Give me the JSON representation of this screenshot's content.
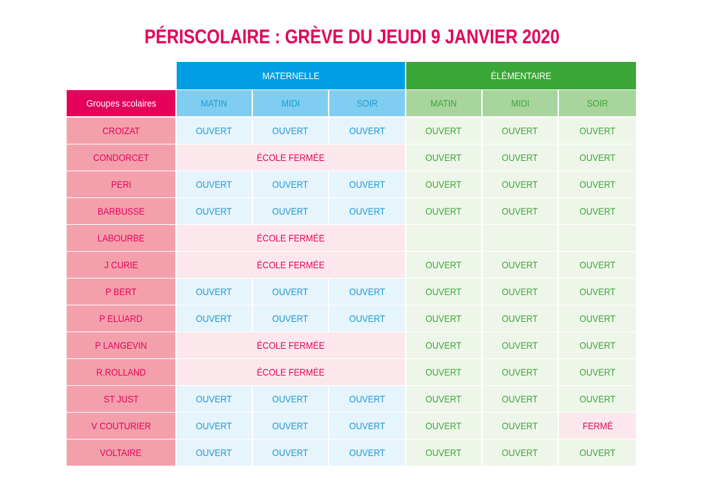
{
  "title": "PÉRISCOLAIRE : GRÈVE DU JEUDI 9 JANVIER 2020",
  "groups": {
    "maternelle": "MATERNELLE",
    "elementaire": "ÉLÉMENTAIRE"
  },
  "row_header": "Groupes scolaires",
  "periods": [
    "MATIN",
    "MIDI",
    "SOIR"
  ],
  "colors": {
    "title": "#e5005a",
    "maternelle": "#009ee3",
    "elementaire": "#3aa635",
    "school_label": "#f4a0ab"
  },
  "rows": [
    {
      "school": "CROIZAT",
      "maternelle_closed": false,
      "maternelle": [
        "OUVERT",
        "OUVERT",
        "OUVERT"
      ],
      "elementaire": [
        "OUVERT",
        "OUVERT",
        "OUVERT"
      ]
    },
    {
      "school": "CONDORCET",
      "maternelle_closed": true,
      "maternelle_closed_label": "ÉCOLE FERMÉE",
      "elementaire": [
        "OUVERT",
        "OUVERT",
        "OUVERT"
      ]
    },
    {
      "school": "PERI",
      "maternelle_closed": false,
      "maternelle": [
        "OUVERT",
        "OUVERT",
        "OUVERT"
      ],
      "elementaire": [
        "OUVERT",
        "OUVERT",
        "OUVERT"
      ]
    },
    {
      "school": "BARBUSSE",
      "maternelle_closed": false,
      "maternelle": [
        "OUVERT",
        "OUVERT",
        "OUVERT"
      ],
      "elementaire": [
        "OUVERT",
        "OUVERT",
        "OUVERT"
      ]
    },
    {
      "school": "LABOURBE",
      "maternelle_closed": true,
      "maternelle_closed_label": "ÉCOLE FERMÉE",
      "elementaire": [
        "",
        "",
        ""
      ]
    },
    {
      "school": "J CURIE",
      "maternelle_closed": true,
      "maternelle_closed_label": "ÉCOLE FERMÉE",
      "elementaire": [
        "OUVERT",
        "OUVERT",
        "OUVERT"
      ]
    },
    {
      "school": "P BERT",
      "maternelle_closed": false,
      "maternelle": [
        "OUVERT",
        "OUVERT",
        "OUVERT"
      ],
      "elementaire": [
        "OUVERT",
        "OUVERT",
        "OUVERT"
      ]
    },
    {
      "school": "P ELUARD",
      "maternelle_closed": false,
      "maternelle": [
        "OUVERT",
        "OUVERT",
        "OUVERT"
      ],
      "elementaire": [
        "OUVERT",
        "OUVERT",
        "OUVERT"
      ]
    },
    {
      "school": "P LANGEVIN",
      "maternelle_closed": true,
      "maternelle_closed_label": "ÉCOLE FERMÉE",
      "elementaire": [
        "OUVERT",
        "OUVERT",
        "OUVERT"
      ]
    },
    {
      "school": "R.ROLLAND",
      "maternelle_closed": true,
      "maternelle_closed_label": "ÉCOLE FERMÉE",
      "elementaire": [
        "OUVERT",
        "OUVERT",
        "OUVERT"
      ]
    },
    {
      "school": "ST JUST",
      "maternelle_closed": false,
      "maternelle": [
        "OUVERT",
        "OUVERT",
        "OUVERT"
      ],
      "elementaire": [
        "OUVERT",
        "OUVERT",
        "OUVERT"
      ]
    },
    {
      "school": "V COUTURIER",
      "maternelle_closed": false,
      "maternelle": [
        "OUVERT",
        "OUVERT",
        "OUVERT"
      ],
      "elementaire": [
        "OUVERT",
        "OUVERT",
        "FERMÉ"
      ]
    },
    {
      "school": "VOLTAIRE",
      "maternelle_closed": false,
      "maternelle": [
        "OUVERT",
        "OUVERT",
        "OUVERT"
      ],
      "elementaire": [
        "OUVERT",
        "OUVERT",
        "OUVERT"
      ]
    }
  ]
}
